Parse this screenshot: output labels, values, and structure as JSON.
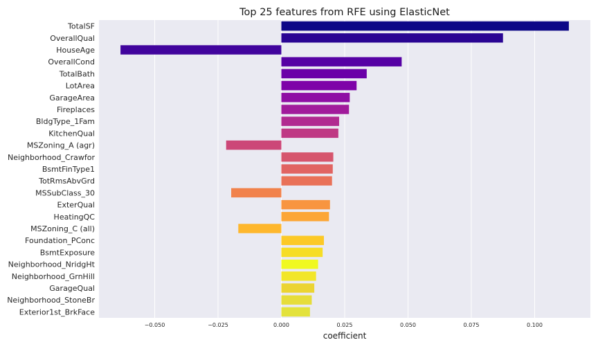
{
  "chart_data": {
    "type": "bar",
    "orientation": "horizontal",
    "title": "Top 25 features from RFE using ElasticNet",
    "xlabel": "coefficient",
    "ylabel": "",
    "xlim": [
      -0.072,
      0.122
    ],
    "xticks": [
      -0.05,
      -0.025,
      0.0,
      0.025,
      0.05,
      0.075,
      0.1
    ],
    "xtick_labels": [
      "−0.050",
      "−0.025",
      "0.000",
      "0.025",
      "0.050",
      "0.075",
      "0.100"
    ],
    "grid": true,
    "categories": [
      "TotalSF",
      "OverallQual",
      "HouseAge",
      "OverallCond",
      "TotalBath",
      "LotArea",
      "GarageArea",
      "Fireplaces",
      "BldgType_1Fam",
      "KitchenQual",
      "MSZoning_A (agr)",
      "Neighborhood_Crawfor",
      "BsmtFinType1",
      "TotRmsAbvGrd",
      "MSSubClass_30",
      "ExterQual",
      "HeatingQC",
      "MSZoning_C (all)",
      "Foundation_PConc",
      "BsmtExposure",
      "Neighborhood_NridgHt",
      "Neighborhood_GrnHill",
      "GarageQual",
      "Neighborhood_StoneBr",
      "Exterior1st_BrkFace"
    ],
    "values": [
      0.1135,
      0.0875,
      -0.0635,
      0.0475,
      0.0337,
      0.0297,
      0.027,
      0.0267,
      0.0228,
      0.0225,
      -0.0218,
      0.0205,
      0.0203,
      0.02,
      -0.0198,
      0.0192,
      0.0188,
      -0.017,
      0.0168,
      0.0163,
      0.0145,
      0.0137,
      0.013,
      0.012,
      0.0113
    ],
    "colors": [
      "#0d0887",
      "#2a0593",
      "#41049d",
      "#5601a4",
      "#6a00a8",
      "#7e03a8",
      "#8f0da4",
      "#a11b9b",
      "#b12a90",
      "#bf3984",
      "#cc4778",
      "#d6556d",
      "#e16462",
      "#e97158",
      "#f1824c",
      "#f89540",
      "#fca636",
      "#feb72d",
      "#fcc926",
      "#f6dd25",
      "#f0f921",
      "#f2e629",
      "#ebd432",
      "#e6dd3a",
      "#e3e23c"
    ]
  }
}
